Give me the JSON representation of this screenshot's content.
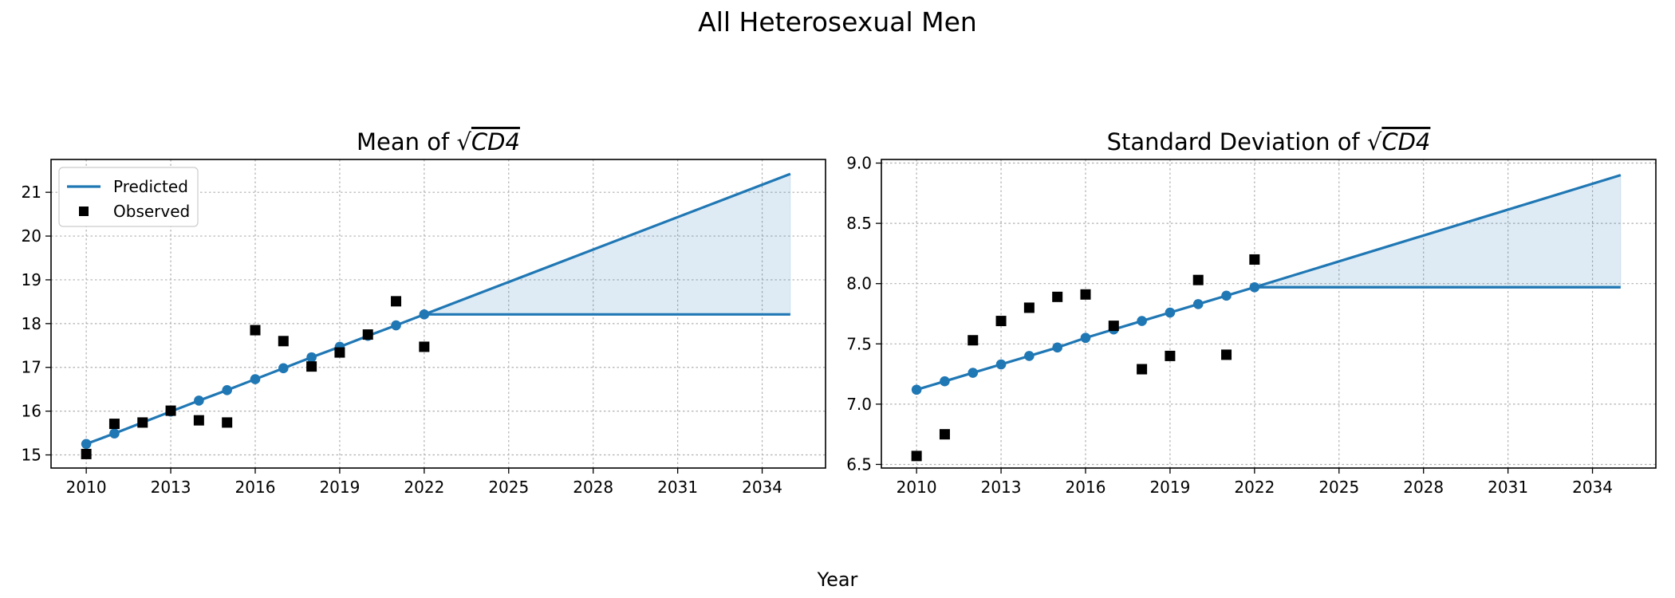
{
  "figure": {
    "suptitle": "All Heterosexual Men",
    "xlabel": "Year"
  },
  "colors": {
    "predicted": "#1f77b4",
    "band": "#1f77b4",
    "observed": "#000000"
  },
  "chart_data": [
    {
      "type": "line",
      "title_prefix": "Mean of ",
      "title_math": "CD4",
      "xticks": [
        2010,
        2013,
        2016,
        2019,
        2022,
        2025,
        2028,
        2031,
        2034
      ],
      "yticks": [
        15,
        16,
        17,
        18,
        19,
        20,
        21
      ],
      "xlim": [
        2008.75,
        2036.25
      ],
      "ylim": [
        14.7,
        21.75
      ],
      "grid": true,
      "legend": {
        "position": "top-left",
        "entries": [
          "Predicted",
          "Observed"
        ]
      },
      "predicted": {
        "name": "Predicted",
        "x": [
          2010,
          2011,
          2012,
          2013,
          2014,
          2015,
          2016,
          2017,
          2018,
          2019,
          2020,
          2021,
          2022
        ],
        "y": [
          15.25,
          15.49,
          15.74,
          15.99,
          16.24,
          16.48,
          16.73,
          16.98,
          17.23,
          17.47,
          17.72,
          17.96,
          18.21
        ]
      },
      "projection": {
        "x": [
          2022,
          2035
        ],
        "upper": [
          18.21,
          21.42
        ],
        "lower": [
          18.21,
          18.21
        ]
      },
      "observed": {
        "name": "Observed",
        "x": [
          2010,
          2011,
          2012,
          2013,
          2014,
          2015,
          2016,
          2017,
          2018,
          2019,
          2020,
          2021,
          2022
        ],
        "y": [
          15.02,
          15.71,
          15.74,
          16.01,
          15.79,
          15.74,
          17.85,
          17.6,
          17.02,
          17.34,
          17.75,
          18.51,
          17.47
        ]
      }
    },
    {
      "type": "line",
      "title_prefix": "Standard Deviation of ",
      "title_math": "CD4",
      "xticks": [
        2010,
        2013,
        2016,
        2019,
        2022,
        2025,
        2028,
        2031,
        2034
      ],
      "yticks": [
        "6.5",
        "7.0",
        "7.5",
        "8.0",
        "8.5",
        "9.0"
      ],
      "xlim": [
        2008.75,
        2036.25
      ],
      "ylim": [
        6.47,
        9.03
      ],
      "grid": true,
      "predicted": {
        "name": "Predicted",
        "x": [
          2010,
          2011,
          2012,
          2013,
          2014,
          2015,
          2016,
          2017,
          2018,
          2019,
          2020,
          2021,
          2022
        ],
        "y": [
          7.12,
          7.19,
          7.26,
          7.33,
          7.4,
          7.47,
          7.55,
          7.62,
          7.69,
          7.76,
          7.83,
          7.9,
          7.97
        ]
      },
      "projection": {
        "x": [
          2022,
          2035
        ],
        "upper": [
          7.97,
          8.9
        ],
        "lower": [
          7.97,
          7.97
        ]
      },
      "observed": {
        "name": "Observed",
        "x": [
          2010,
          2011,
          2012,
          2013,
          2014,
          2015,
          2016,
          2017,
          2018,
          2019,
          2020,
          2021,
          2022
        ],
        "y": [
          6.57,
          6.75,
          7.53,
          7.69,
          7.8,
          7.89,
          7.91,
          7.65,
          7.29,
          7.4,
          8.03,
          7.41,
          8.2
        ]
      }
    }
  ]
}
